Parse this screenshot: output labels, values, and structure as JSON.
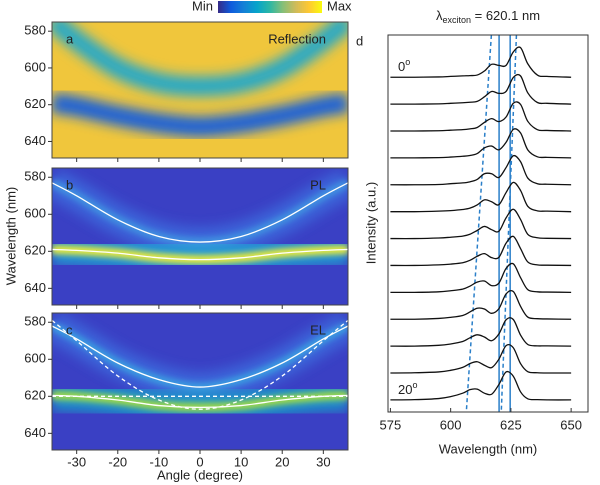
{
  "chart_data": [
    {
      "type": "heatmap",
      "panel_label": "a",
      "title": "Reflection",
      "label_color": "#111111",
      "background": "#f0c63c",
      "x": [
        -36,
        -30,
        -20,
        -10,
        0,
        10,
        20,
        30,
        36
      ],
      "xlim": [
        -36,
        36
      ],
      "xticks": [
        -30,
        -20,
        -10,
        0,
        10,
        20,
        30
      ],
      "xtick_labels": false,
      "ylim": [
        649,
        575
      ],
      "yticks": [
        580,
        600,
        620,
        640
      ],
      "series": [
        {
          "style": "band",
          "color": "#2aa9c4",
          "values": [
            574,
            585,
            600,
            608,
            610,
            608,
            600,
            585,
            574
          ]
        },
        {
          "style": "band",
          "color": "#1f62d6",
          "values": [
            619,
            621,
            626,
            630,
            632,
            630,
            626,
            621,
            619
          ]
        }
      ],
      "colorbar": {
        "min_label": "Min",
        "max_label": "Max",
        "colormap": [
          "#352a87",
          "#0f5cdd",
          "#1481d6",
          "#06a4ca",
          "#2eb7a4",
          "#87bf77",
          "#d1bb59",
          "#fec832",
          "#f9fb0e"
        ]
      }
    },
    {
      "type": "heatmap",
      "panel_label": "b",
      "title": "PL",
      "label_color": "#ffffff",
      "background": "#3a40c4",
      "x": [
        -36,
        -30,
        -20,
        -10,
        0,
        10,
        20,
        30,
        36
      ],
      "xlim": [
        -36,
        36
      ],
      "xticks": [
        -30,
        -20,
        -10,
        0,
        10,
        20,
        30
      ],
      "xtick_labels": false,
      "ylim": [
        649,
        575
      ],
      "yticks": [
        580,
        600,
        620,
        640
      ],
      "ylabel": "Wavelength (nm)",
      "series": [
        {
          "style": "solid",
          "color": "#ffffff",
          "glow": [
            "#3d6fe0",
            "#3f8fe0"
          ],
          "values": [
            583,
            590,
            603,
            612,
            615,
            612,
            603,
            590,
            583
          ]
        },
        {
          "style": "solid",
          "color": "#ffffff",
          "glow": [
            "#1fb8d6",
            "#e8e83a"
          ],
          "values": [
            619,
            619.5,
            621,
            623.5,
            624.5,
            623.5,
            621,
            619.5,
            619
          ]
        }
      ]
    },
    {
      "type": "heatmap",
      "panel_label": "c",
      "title": "EL",
      "label_color": "#ffffff",
      "background": "#3a40c4",
      "x": [
        -36,
        -30,
        -20,
        -10,
        0,
        10,
        20,
        30,
        36
      ],
      "xlim": [
        -36,
        36
      ],
      "xticks": [
        -30,
        -20,
        -10,
        0,
        10,
        20,
        30
      ],
      "xtick_labels": true,
      "ylim": [
        649,
        575
      ],
      "yticks": [
        580,
        600,
        620,
        640
      ],
      "xlabel": "Angle (degree)",
      "series": [
        {
          "style": "solid",
          "color": "#ffffff",
          "glow": [
            "#3d6fe0",
            "#3a9ae0"
          ],
          "values": [
            582,
            589,
            602,
            611,
            615,
            611,
            602,
            589,
            582
          ]
        },
        {
          "style": "solid",
          "color": "#ffffff",
          "glow": [
            "#16b0c8",
            "#9cd84a"
          ],
          "values": [
            619.5,
            620,
            622,
            625,
            626,
            625,
            622,
            620,
            619.5
          ]
        },
        {
          "style": "dashed",
          "color": "#ffffff",
          "values": [
            579,
            590,
            609,
            622,
            627,
            622,
            609,
            590,
            579
          ]
        },
        {
          "style": "dashed",
          "color": "#ffffff",
          "values": [
            620,
            620,
            620,
            620,
            620,
            620,
            620,
            620,
            620
          ]
        }
      ]
    },
    {
      "type": "line",
      "panel_label": "d",
      "title_parts": [
        "λ",
        "exciton",
        " = 620.1 nm"
      ],
      "xlabel": "Wavelength (nm)",
      "ylabel": "Intensity (a.u.)",
      "xlim": [
        574,
        657
      ],
      "xticks": [
        575,
        600,
        625,
        650
      ],
      "ylim": [
        -0.45,
        13.57
      ],
      "vlines": [
        620.1,
        624.7
      ],
      "vline_color": "#2a7fc9",
      "guides": [
        {
          "x": [
            616.9,
            606.5
          ]
        },
        {
          "x": [
            627.3,
            621
          ]
        }
      ],
      "annotations": [
        {
          "text": "0",
          "superscript": "o"
        },
        {
          "text": "20",
          "superscript": "o"
        }
      ],
      "x": [
        575,
        585,
        595,
        600,
        605,
        608,
        611,
        614,
        617,
        620,
        623,
        626,
        629,
        632,
        636,
        640,
        650
      ],
      "series": [
        {
          "color": "#111111",
          "values": [
            12,
            12,
            12.01,
            12.03,
            12.05,
            12.06,
            12.08,
            12.23,
            12.48,
            12.44,
            12.44,
            12.94,
            13.1,
            12.5,
            12.08,
            12.03,
            12
          ]
        },
        {
          "color": "#111111",
          "values": [
            11,
            11,
            11.01,
            11.03,
            11.05,
            11.07,
            11.1,
            11.27,
            11.47,
            11.4,
            11.47,
            11.99,
            12.05,
            11.42,
            11.06,
            11.03,
            11
          ]
        },
        {
          "color": "#111111",
          "values": [
            10,
            10,
            10.01,
            10.03,
            10.05,
            10.08,
            10.13,
            10.32,
            10.46,
            10.35,
            10.52,
            11.03,
            10.99,
            10.36,
            10.05,
            10.02,
            10
          ]
        },
        {
          "color": "#111111",
          "values": [
            9,
            9,
            9.01,
            9.03,
            9.06,
            9.09,
            9.16,
            9.37,
            9.44,
            9.3,
            9.58,
            10.06,
            9.93,
            9.3,
            9.04,
            9.02,
            9
          ]
        },
        {
          "color": "#111111",
          "values": [
            8,
            8,
            8.01,
            8.04,
            8.07,
            8.11,
            8.2,
            8.41,
            8.41,
            8.27,
            8.64,
            9.08,
            8.86,
            8.25,
            8.04,
            8.02,
            8
          ]
        },
        {
          "color": "#111111",
          "values": [
            7,
            7,
            7.02,
            7.04,
            7.08,
            7.13,
            7.25,
            7.44,
            7.37,
            7.26,
            7.71,
            8.09,
            7.79,
            7.2,
            7.03,
            7.02,
            7
          ]
        },
        {
          "color": "#111111",
          "values": [
            6,
            6,
            6.02,
            6.05,
            6.09,
            6.16,
            6.3,
            6.45,
            6.33,
            6.27,
            6.77,
            7.09,
            6.71,
            6.16,
            6.03,
            6.01,
            6
          ]
        },
        {
          "color": "#111111",
          "values": [
            5,
            5,
            5.02,
            5.05,
            5.1,
            5.19,
            5.34,
            5.44,
            5.29,
            5.3,
            5.83,
            6.08,
            5.63,
            5.13,
            5.02,
            5.01,
            5
          ]
        },
        {
          "color": "#111111",
          "values": [
            4,
            4,
            4.02,
            4.06,
            4.12,
            4.23,
            4.38,
            4.42,
            4.25,
            4.34,
            4.89,
            5.06,
            4.55,
            4.1,
            4.02,
            4.01,
            4
          ]
        },
        {
          "color": "#111111",
          "values": [
            3,
            3,
            3.03,
            3.07,
            3.14,
            3.27,
            3.41,
            3.38,
            3.22,
            3.39,
            3.94,
            4.03,
            3.48,
            3.08,
            3.02,
            3.01,
            3
          ]
        },
        {
          "color": "#111111",
          "values": [
            2,
            2,
            2.03,
            2.08,
            2.17,
            2.31,
            2.42,
            2.34,
            2.2,
            2.45,
            2.98,
            2.99,
            2.41,
            2.06,
            2.01,
            2.01,
            2
          ]
        },
        {
          "color": "#111111",
          "values": [
            1,
            1.01,
            1.04,
            1.1,
            1.21,
            1.35,
            1.42,
            1.29,
            1.2,
            1.51,
            2.02,
            1.94,
            1.35,
            1.05,
            1.01,
            1,
            1
          ]
        },
        {
          "color": "#111111",
          "values": [
            0,
            0.01,
            0.05,
            0.12,
            0.25,
            0.38,
            0.4,
            0.25,
            0.21,
            0.57,
            1.04,
            0.88,
            0.3,
            0.04,
            0.01,
            0,
            0
          ]
        }
      ]
    }
  ]
}
